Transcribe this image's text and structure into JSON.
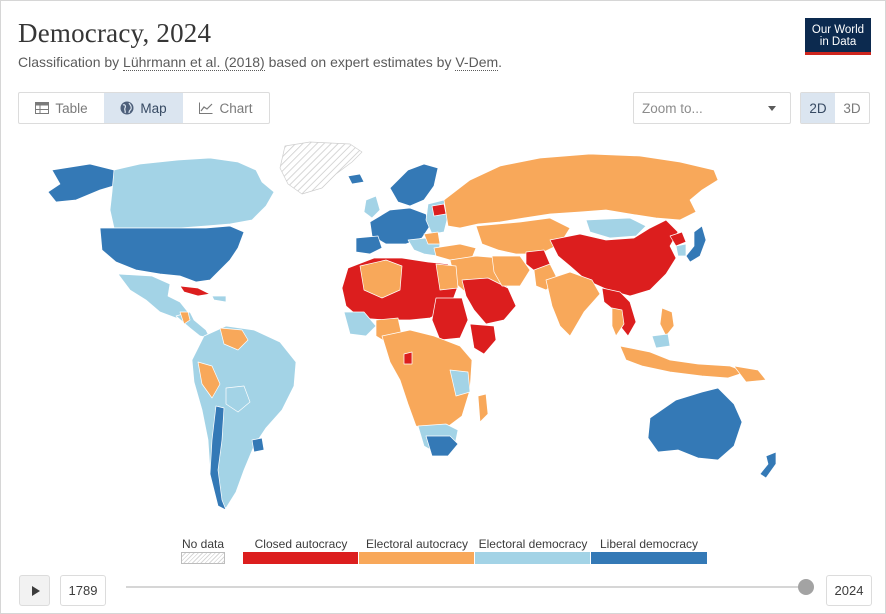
{
  "header": {
    "title": "Democracy, 2024",
    "subtitle_prefix": "Classification by ",
    "subtitle_link1": "Lührmann et al. (2018)",
    "subtitle_middle": " based on expert estimates by ",
    "subtitle_link2": "V-Dem",
    "subtitle_suffix": "."
  },
  "logo": {
    "line1": "Our World",
    "line2": "in Data",
    "bg_color": "#0c2a4f",
    "accent_color": "#ce261e"
  },
  "tabs": [
    {
      "label": "Table",
      "icon": "table-icon",
      "active": false
    },
    {
      "label": "Map",
      "icon": "globe-icon",
      "active": true
    },
    {
      "label": "Chart",
      "icon": "line-chart-icon",
      "active": false
    }
  ],
  "zoom": {
    "placeholder": "Zoom to..."
  },
  "dimension": [
    {
      "label": "2D",
      "active": true
    },
    {
      "label": "3D",
      "active": false
    }
  ],
  "legend": {
    "no_data": {
      "label": "No data"
    },
    "categories": [
      {
        "label": "Closed autocracy",
        "color": "#dc1e1e"
      },
      {
        "label": "Electoral autocracy",
        "color": "#f8a85a"
      },
      {
        "label": "Electoral democracy",
        "color": "#a3d3e6"
      },
      {
        "label": "Liberal democracy",
        "color": "#3479b6"
      }
    ]
  },
  "timeline": {
    "start_year": "1789",
    "end_year": "2024",
    "position_fraction": 1.0
  }
}
